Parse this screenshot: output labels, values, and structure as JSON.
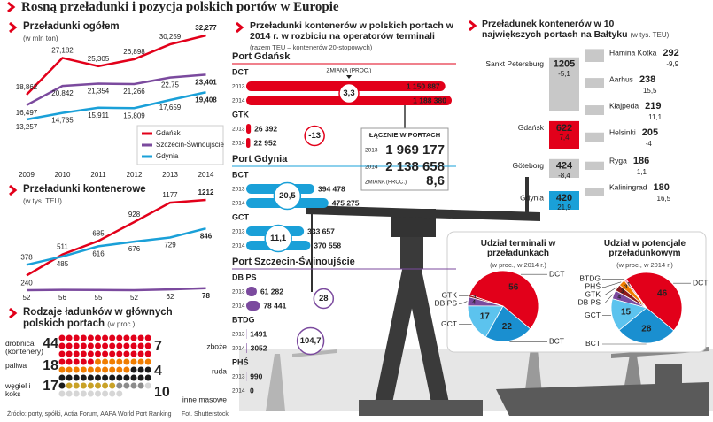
{
  "title": "Rosną przeładunki i pozycja polskich portów w Europie",
  "source": "Źródło: porty, spółki, Actia Forum, AAPA World Port Ranking",
  "photo_credit": "Fot. Shutterstock",
  "chart_data": [
    {
      "type": "line",
      "title": "Przeładunki ogółem",
      "subtitle": "(w mln ton)",
      "categories": [
        "2009",
        "2010",
        "2011",
        "2012",
        "2013",
        "2014"
      ],
      "series": [
        {
          "name": "Gdańsk",
          "color": "#e2001a",
          "values": [
            18.862,
            27.182,
            25.305,
            26.898,
            30.259,
            32.277
          ],
          "value_labels": [
            "18,862",
            "27,182",
            "25,305",
            "26,898",
            "30,259",
            "32,277"
          ]
        },
        {
          "name": "Szczecin-Świnoujście",
          "color": "#7b4a9e",
          "values": [
            16.497,
            20.842,
            21.354,
            21.266,
            22.75,
            23.401
          ],
          "value_labels": [
            "16,497",
            "20,842",
            "21,354",
            "21,266",
            "22,75",
            "23,401"
          ]
        },
        {
          "name": "Gdynia",
          "color": "#1aa0d8",
          "values": [
            13.257,
            14.735,
            15.911,
            15.809,
            17.659,
            19.408
          ],
          "value_labels": [
            "13,257",
            "14,735",
            "15,911",
            "15,809",
            "17,659",
            "19,408"
          ]
        }
      ],
      "legend": "bottom-right"
    },
    {
      "type": "line",
      "title": "Przeładunki kontenerowe",
      "subtitle": "(w tys. TEU)",
      "series": [
        {
          "color": "#e2001a",
          "values": [
            240,
            511,
            685,
            928,
            1177,
            1212
          ]
        },
        {
          "color": "#7b4a9e",
          "values": [
            52,
            56,
            55,
            52,
            62,
            78
          ]
        },
        {
          "color": "#1aa0d8",
          "values": [
            378,
            485,
            616,
            676,
            729,
            846
          ]
        }
      ]
    },
    {
      "type": "waffle",
      "title": "Rodzaje ładunków w głównych polskich portach",
      "subtitle": "(w proc.)",
      "categories": [
        "drobnica (kontenery)",
        "paliwa",
        "węgiel i koks",
        "zboże",
        "ruda",
        "inne masowe"
      ],
      "values": [
        44,
        18,
        17,
        7,
        4,
        10
      ],
      "colors": [
        "#e2001a",
        "#f07d00",
        "#1a1a1a",
        "#c9a227",
        "#8c8c8c",
        "#d6d6d6"
      ]
    },
    {
      "type": "bar",
      "orientation": "horizontal",
      "title": "Przeładunki kontenerów w polskich portach w 2014 r. w rozbiciu na operatorów terminali",
      "subtitle": "(razem TEU – kontenerów 20-stopowych)",
      "years": [
        "2013",
        "2014"
      ],
      "change_title": "ZMIANA (PROC.)",
      "groups": [
        {
          "name": "Port Gdańsk",
          "color": "#e2001a",
          "terminals": [
            {
              "name": "DCT",
              "values": [
                1150887,
                1188380
              ],
              "value_labels": [
                "1 150 887",
                "1 188 380"
              ],
              "change": 3.3,
              "change_label": "3,3"
            },
            {
              "name": "GTK",
              "values": [
                26392,
                22952
              ],
              "value_labels": [
                "26 392",
                "22 952"
              ],
              "change": -13
            }
          ]
        },
        {
          "name": "Port Gdynia",
          "color": "#1aa0d8",
          "terminals": [
            {
              "name": "BCT",
              "values": [
                394478,
                475275
              ],
              "value_labels": [
                "394 478",
                "475 275"
              ],
              "change": 20.5,
              "change_label": "20,5"
            },
            {
              "name": "GCT",
              "values": [
                333657,
                370558
              ],
              "value_labels": [
                "333 657",
                "370 558"
              ],
              "change": 11.1,
              "change_label": "11,1"
            }
          ]
        },
        {
          "name": "Port Szczecin-Świnoujście",
          "color": "#7b4a9e",
          "terminals": [
            {
              "name": "DB PS",
              "values": [
                61282,
                78441
              ],
              "value_labels": [
                "61 282",
                "78 441"
              ],
              "change": 28
            },
            {
              "name": "BTDG",
              "values": [
                1491,
                3052
              ],
              "change": 104.7,
              "change_label": "104,7"
            },
            {
              "name": "PHŚ",
              "values": [
                990,
                0
              ]
            }
          ]
        }
      ],
      "total": {
        "name": "ŁĄCZNIE W PORTACH",
        "values": [
          1969177,
          2138658
        ],
        "value_labels": [
          "1 969 177",
          "2 138 658"
        ],
        "change": 8.6,
        "change_label": "8,6"
      }
    },
    {
      "type": "bar",
      "title": "Przeładunek kontenerów w 10 największych portach na Bałtyku",
      "subtitle": "(w tys. TEU)",
      "categories": [
        "Sankt Petersburg",
        "Gdańsk",
        "Göteborg",
        "Gdynia",
        "Hamina Kotka",
        "Aarhus",
        "Kłajpeda",
        "Helsinki",
        "Ryga",
        "Kaliningrad"
      ],
      "values": [
        1205,
        622,
        424,
        420,
        292,
        238,
        219,
        205,
        186,
        180
      ],
      "changes": [
        -5.1,
        7.4,
        -8.4,
        21.9,
        -9.9,
        15.5,
        11.1,
        -4,
        1.1,
        16.5
      ],
      "change_labels": [
        "-5,1",
        "7,4",
        "-8,4",
        "21,9",
        "-9,9",
        "15,5",
        "11,1",
        "-4",
        "1,1",
        "16,5"
      ],
      "colors": [
        "#c8c8c8",
        "#e2001a",
        "#c8c8c8",
        "#1aa0d8",
        "#c8c8c8",
        "#c8c8c8",
        "#c8c8c8",
        "#c8c8c8",
        "#c8c8c8",
        "#c8c8c8"
      ]
    },
    {
      "type": "pie",
      "title": "Udział terminali w przeładunkach",
      "subtitle": "(w proc., w 2014 r.)",
      "categories": [
        "DCT",
        "GTK",
        "DB PS",
        "GCT",
        "BCT"
      ],
      "values": [
        56,
        1,
        4,
        17,
        22
      ],
      "colors": [
        "#e2001a",
        "#8e1b1b",
        "#7b4a9e",
        "#5cc3ee",
        "#1a8fd0"
      ]
    },
    {
      "type": "pie",
      "title": "Udział w potencjale przeładunkowym",
      "subtitle": "(w proc., w 2014 r.)",
      "categories": [
        "DCT",
        "BTDG",
        "PHŚ",
        "GTK",
        "DB PS",
        "GCT",
        "BCT"
      ],
      "values": [
        46,
        1,
        3,
        3,
        4,
        15,
        28
      ],
      "colors": [
        "#e2001a",
        "#e98fb0",
        "#f07d00",
        "#8e1b1b",
        "#7b4a9e",
        "#5cc3ee",
        "#1a8fd0"
      ]
    }
  ]
}
